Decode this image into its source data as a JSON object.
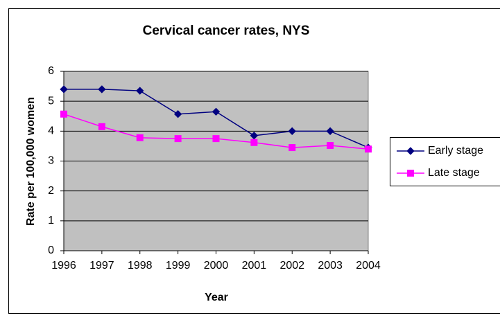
{
  "chart_data": {
    "type": "line",
    "title": "Cervical cancer rates, NYS",
    "x_label": "Year",
    "y_label": "Rate per 100,000 women",
    "categories": [
      "1996",
      "1997",
      "1998",
      "1999",
      "2000",
      "2001",
      "2002",
      "2003",
      "2004"
    ],
    "series": [
      {
        "name": "Early stage",
        "color": "#000080",
        "marker": "diamond",
        "values": [
          5.4,
          5.4,
          5.35,
          4.57,
          4.65,
          3.85,
          4.0,
          4.0,
          3.45
        ]
      },
      {
        "name": "Late stage",
        "color": "#ff00ff",
        "marker": "square",
        "values": [
          4.57,
          4.15,
          3.78,
          3.75,
          3.75,
          3.62,
          3.45,
          3.52,
          3.4
        ]
      }
    ],
    "ylim": [
      0,
      6
    ],
    "yticks": [
      0,
      1,
      2,
      3,
      4,
      5,
      6
    ],
    "grid": true,
    "legend": "right"
  }
}
